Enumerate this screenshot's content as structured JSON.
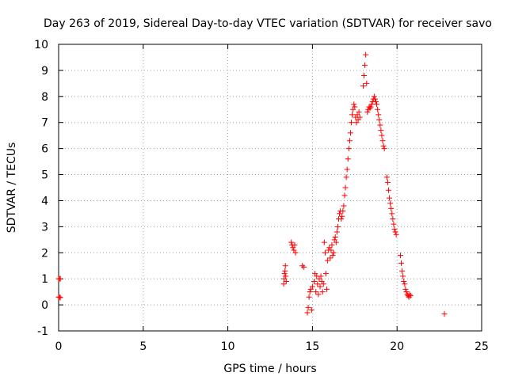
{
  "chart_data": {
    "type": "scatter",
    "title": "Day 263 of 2019, Sidereal Day-to-day VTEC variation (SDTVAR) for receiver savo",
    "xlabel": "GPS time / hours",
    "ylabel": "SDTVAR / TECUs",
    "xlim": [
      0,
      25
    ],
    "ylim": [
      -1,
      10
    ],
    "x_ticks": [
      0,
      5,
      10,
      15,
      20,
      25
    ],
    "y_ticks": [
      -1,
      0,
      1,
      2,
      3,
      4,
      5,
      6,
      7,
      8,
      9,
      10
    ],
    "grid": true,
    "marker": "+",
    "series": [
      {
        "name": "SDTVAR",
        "color": "#ff0000",
        "points": [
          [
            0.0,
            1.0
          ],
          [
            0.05,
            1.0
          ],
          [
            0.1,
            1.0
          ],
          [
            0.0,
            0.3
          ],
          [
            0.05,
            0.3
          ],
          [
            0.1,
            0.28
          ],
          [
            13.3,
            0.8
          ],
          [
            13.32,
            1.0
          ],
          [
            13.35,
            1.2
          ],
          [
            13.38,
            1.3
          ],
          [
            13.4,
            1.5
          ],
          [
            13.42,
            1.1
          ],
          [
            13.45,
            0.9
          ],
          [
            13.75,
            2.4
          ],
          [
            13.8,
            2.3
          ],
          [
            13.85,
            2.2
          ],
          [
            13.9,
            2.1
          ],
          [
            13.95,
            2.3
          ],
          [
            14.0,
            2.0
          ],
          [
            14.4,
            1.5
          ],
          [
            14.5,
            1.45
          ],
          [
            14.7,
            -0.3
          ],
          [
            14.75,
            -0.1
          ],
          [
            14.8,
            0.3
          ],
          [
            14.85,
            0.5
          ],
          [
            14.9,
            0.6
          ],
          [
            14.95,
            -0.2
          ],
          [
            15.0,
            0.7
          ],
          [
            15.1,
            0.9
          ],
          [
            15.15,
            1.2
          ],
          [
            15.2,
            0.5
          ],
          [
            15.25,
            1.1
          ],
          [
            15.3,
            0.8
          ],
          [
            15.35,
            0.4
          ],
          [
            15.4,
            1.0
          ],
          [
            15.45,
            0.7
          ],
          [
            15.5,
            1.1
          ],
          [
            15.55,
            0.9
          ],
          [
            15.6,
            0.5
          ],
          [
            15.65,
            0.8
          ],
          [
            15.7,
            2.4
          ],
          [
            15.75,
            2.0
          ],
          [
            15.8,
            1.2
          ],
          [
            15.85,
            0.6
          ],
          [
            15.9,
            1.7
          ],
          [
            15.95,
            2.1
          ],
          [
            16.0,
            2.2
          ],
          [
            16.05,
            1.8
          ],
          [
            16.1,
            2.1
          ],
          [
            16.15,
            2.3
          ],
          [
            16.2,
            1.9
          ],
          [
            16.25,
            2.0
          ],
          [
            16.3,
            2.5
          ],
          [
            16.35,
            2.6
          ],
          [
            16.4,
            2.4
          ],
          [
            16.45,
            2.8
          ],
          [
            16.5,
            3.0
          ],
          [
            16.55,
            3.3
          ],
          [
            16.6,
            3.5
          ],
          [
            16.65,
            3.6
          ],
          [
            16.7,
            3.3
          ],
          [
            16.75,
            3.4
          ],
          [
            16.8,
            3.6
          ],
          [
            16.85,
            3.8
          ],
          [
            16.9,
            4.2
          ],
          [
            16.95,
            4.5
          ],
          [
            17.0,
            4.9
          ],
          [
            17.05,
            5.2
          ],
          [
            17.1,
            5.6
          ],
          [
            17.15,
            6.0
          ],
          [
            17.2,
            6.3
          ],
          [
            17.25,
            6.6
          ],
          [
            17.3,
            7.0
          ],
          [
            17.35,
            7.3
          ],
          [
            17.4,
            7.5
          ],
          [
            17.45,
            7.7
          ],
          [
            17.5,
            7.6
          ],
          [
            17.55,
            7.2
          ],
          [
            17.6,
            7.0
          ],
          [
            17.65,
            7.3
          ],
          [
            17.7,
            7.1
          ],
          [
            17.75,
            7.4
          ],
          [
            17.8,
            7.2
          ],
          [
            18.0,
            8.4
          ],
          [
            18.05,
            8.8
          ],
          [
            18.1,
            9.2
          ],
          [
            18.15,
            9.6
          ],
          [
            18.2,
            8.5
          ],
          [
            18.25,
            7.4
          ],
          [
            18.3,
            7.5
          ],
          [
            18.35,
            7.6
          ],
          [
            18.4,
            7.55
          ],
          [
            18.45,
            7.6
          ],
          [
            18.5,
            7.7
          ],
          [
            18.55,
            7.8
          ],
          [
            18.6,
            7.9
          ],
          [
            18.65,
            8.0
          ],
          [
            18.7,
            7.9
          ],
          [
            18.75,
            7.8
          ],
          [
            18.8,
            7.7
          ],
          [
            18.85,
            7.5
          ],
          [
            18.9,
            7.3
          ],
          [
            18.95,
            7.1
          ],
          [
            19.0,
            6.9
          ],
          [
            19.05,
            6.7
          ],
          [
            19.1,
            6.5
          ],
          [
            19.15,
            6.3
          ],
          [
            19.2,
            6.1
          ],
          [
            19.25,
            6.0
          ],
          [
            19.4,
            4.9
          ],
          [
            19.45,
            4.7
          ],
          [
            19.5,
            4.4
          ],
          [
            19.55,
            4.1
          ],
          [
            19.6,
            3.9
          ],
          [
            19.65,
            3.7
          ],
          [
            19.7,
            3.5
          ],
          [
            19.75,
            3.3
          ],
          [
            19.8,
            3.1
          ],
          [
            19.85,
            2.9
          ],
          [
            19.9,
            2.8
          ],
          [
            19.95,
            2.7
          ],
          [
            20.2,
            1.9
          ],
          [
            20.25,
            1.6
          ],
          [
            20.3,
            1.3
          ],
          [
            20.35,
            1.1
          ],
          [
            20.4,
            0.9
          ],
          [
            20.45,
            0.8
          ],
          [
            20.5,
            0.6
          ],
          [
            20.55,
            0.5
          ],
          [
            20.6,
            0.4
          ],
          [
            20.65,
            0.35
          ],
          [
            20.7,
            0.3
          ],
          [
            20.75,
            0.4
          ],
          [
            20.8,
            0.35
          ],
          [
            22.8,
            -0.35
          ]
        ]
      }
    ]
  }
}
